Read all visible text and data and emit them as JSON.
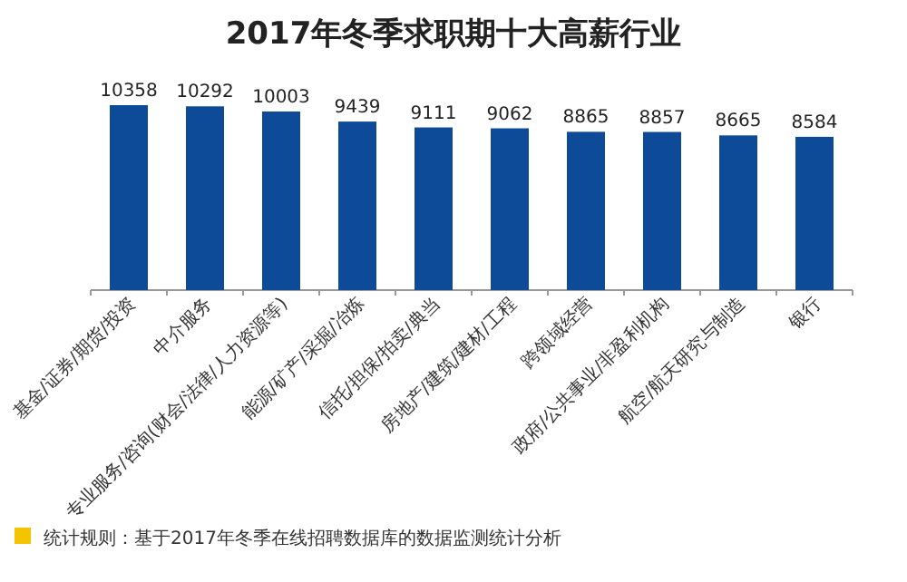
{
  "chart_data": {
    "type": "bar",
    "title": "2017年冬季求职期十大高薪行业",
    "categories": [
      "基金/证券/期货/投资",
      "中介服务",
      "专业服务/咨询(财会/法律/人力资源等)",
      "能源/矿产/采掘/冶炼",
      "信托/担保/拍卖/典当",
      "房地产/建筑/建材/工程",
      "跨领域经营",
      "政府/公共事业/非盈利机构",
      "航空/航天研究与制造",
      "银行"
    ],
    "values": [
      10358,
      10292,
      10003,
      9439,
      9111,
      9062,
      8865,
      8857,
      8665,
      8584
    ],
    "color": "#0d4a98",
    "data_labels": true,
    "annotations": [
      "统计规则：基于2017年冬季在线招聘数据库的数据监测统计分析"
    ]
  }
}
